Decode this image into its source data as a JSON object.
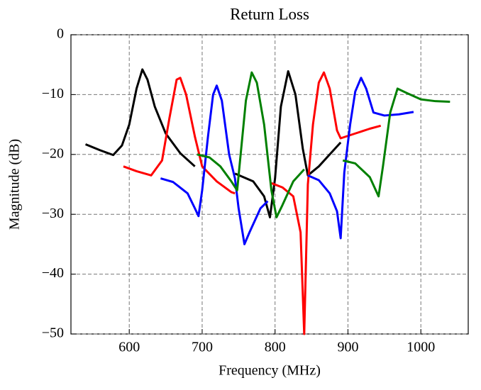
{
  "chart_data": {
    "type": "line",
    "title": "Return Loss",
    "x_label": "Frequency (MHz)",
    "y_label": "Magnitude (dB)",
    "xlim": [
      520,
      1065
    ],
    "ylim": [
      -50,
      0
    ],
    "xticks": [
      600,
      700,
      800,
      900,
      1000
    ],
    "yticks": [
      0,
      {
        "value": -10,
        "label": "−10"
      },
      {
        "value": -20,
        "label": "−20"
      },
      {
        "value": -30,
        "label": "−30"
      },
      {
        "value": -40,
        "label": "−40"
      },
      {
        "value": -50,
        "label": "−50"
      }
    ],
    "grid": true,
    "series": [
      {
        "color": "#000000",
        "x": [
          540,
          560,
          578,
          590,
          600,
          610,
          618,
          625,
          635,
          650,
          670,
          690,
          null,
          745,
          770,
          785,
          793,
          800,
          808,
          818,
          828,
          838,
          845,
          860,
          875,
          890
        ],
        "values": [
          -18.3,
          -19.3,
          -20.1,
          -18.5,
          -15,
          -9,
          -5.8,
          -7.5,
          -12,
          -16.5,
          -19.8,
          -22,
          null,
          -23.2,
          -24.5,
          -27,
          -30.5,
          -24,
          -12,
          -6.1,
          -10,
          -19,
          -23.5,
          -22,
          -20,
          -18
        ]
      },
      {
        "color": "#ff0000",
        "x": [
          592,
          610,
          630,
          645,
          655,
          665,
          670,
          678,
          690,
          700,
          720,
          740,
          745,
          null,
          795,
          810,
          825,
          835,
          840,
          845,
          852,
          860,
          867,
          875,
          885,
          890,
          910,
          930,
          945
        ],
        "values": [
          -22,
          -22.8,
          -23.5,
          -21,
          -14,
          -7.5,
          -7.2,
          -10,
          -17,
          -22,
          -24.5,
          -26.3,
          -26.5,
          null,
          -24.8,
          -25.5,
          -27,
          -33,
          -50,
          -25,
          -15,
          -8,
          -6.3,
          -9,
          -16,
          -17.3,
          -16.5,
          -15.7,
          -15.2
        ]
      },
      {
        "color": "#0000ff",
        "x": [
          643,
          660,
          680,
          690,
          695,
          700,
          708,
          715,
          720,
          727,
          737,
          745,
          750,
          758,
          765,
          780,
          790,
          null,
          845,
          860,
          875,
          885,
          890,
          895,
          903,
          910,
          918,
          925,
          935,
          950,
          970,
          990
        ],
        "values": [
          -24,
          -24.6,
          -26.5,
          -29,
          -30.3,
          -26,
          -17,
          -10,
          -8.5,
          -11,
          -20,
          -24,
          -29,
          -35,
          -33,
          -29,
          -27.8,
          null,
          -23.5,
          -24.3,
          -26.5,
          -29.5,
          -34,
          -23,
          -15,
          -9.5,
          -7.2,
          -9,
          -13,
          -13.5,
          -13.3,
          -12.9
        ]
      },
      {
        "color": "#008000",
        "x": [
          693,
          710,
          725,
          740,
          748,
          752,
          760,
          768,
          775,
          785,
          795,
          802,
          810,
          825,
          840,
          null,
          893,
          910,
          930,
          942,
          948,
          958,
          968,
          980,
          1000,
          1020,
          1040
        ],
        "values": [
          -20,
          -20.5,
          -22,
          -24.5,
          -26,
          -21,
          -11,
          -6.3,
          -8,
          -15,
          -26,
          -30.5,
          -28.5,
          -24.5,
          -22.5,
          null,
          -21,
          -21.5,
          -23.8,
          -27,
          -22,
          -13,
          -9,
          -9.7,
          -10.8,
          -11.1,
          -11.2
        ]
      }
    ]
  }
}
